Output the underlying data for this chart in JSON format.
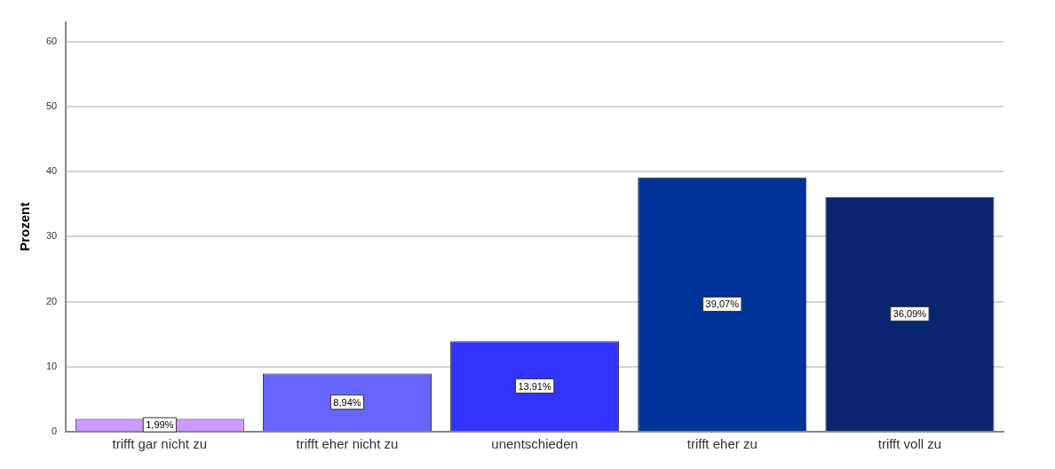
{
  "chart_data": {
    "type": "bar",
    "ylabel": "Prozent",
    "categories": [
      "trifft gar nicht zu",
      "trifft eher nicht zu",
      "unentschieden",
      "trifft eher zu",
      "trifft voll zu"
    ],
    "values": [
      1.99,
      8.94,
      13.91,
      39.07,
      36.09
    ],
    "value_labels": [
      "1,99%",
      "8,94%",
      "13,91%",
      "39,07%",
      "36,09%"
    ],
    "colors": [
      "#cc99ff",
      "#6666ff",
      "#3333ff",
      "#003399",
      "#0a2470"
    ],
    "ylim": [
      0,
      63
    ],
    "yticks": [
      0,
      10,
      20,
      30,
      40,
      50,
      60
    ],
    "grid": "y",
    "legend": false
  }
}
